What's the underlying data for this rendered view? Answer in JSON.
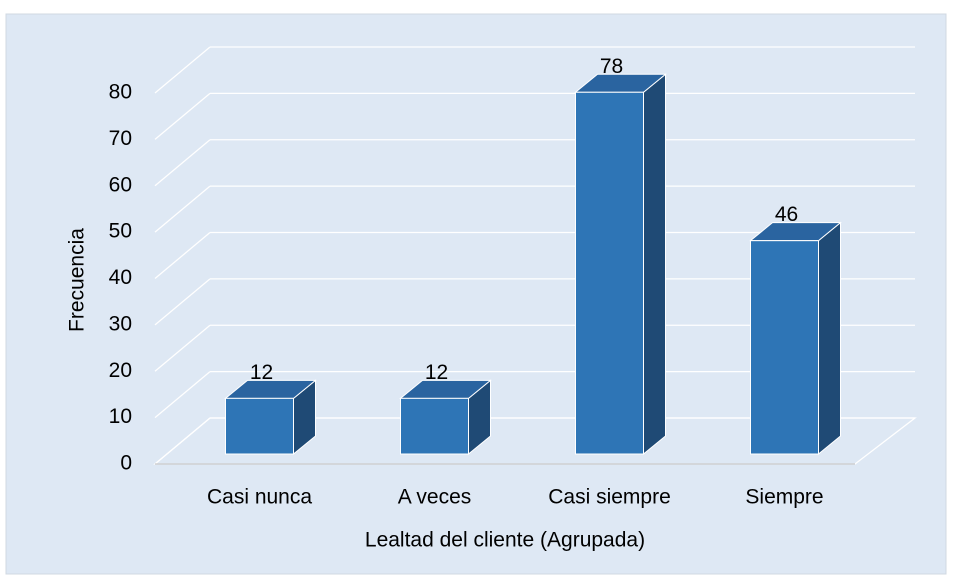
{
  "chart_data": {
    "type": "bar3d",
    "categories": [
      "Casi nunca",
      "A veces",
      "Casi siempre",
      "Siempre"
    ],
    "values": [
      12,
      12,
      78,
      46
    ],
    "color": "#2e75b6",
    "xlabel": "Lealtad del cliente (Agrupada)",
    "ylabel": "Frecuencia",
    "ylim": [
      0,
      80
    ],
    "yticks": [
      0,
      10,
      20,
      30,
      40,
      50,
      60,
      70,
      80
    ],
    "grid": true
  }
}
